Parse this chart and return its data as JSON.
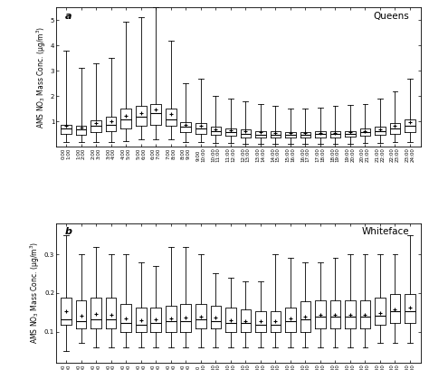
{
  "time_labels": [
    "0:00\n1:00",
    "1:00\n2:00",
    "2:00\n3:00",
    "3:00\n4:00",
    "4:00\n5:00",
    "5:00\n6:00",
    "6:00\n7:00",
    "7:00\n8:00",
    "8:00\n9:00",
    "9:00\n10:00",
    "10:00\n11:00",
    "11:00\n12:00",
    "12:00\n13:00",
    "13:00\n14:00",
    "14:00\n15:00",
    "15:00\n16:00",
    "16:00\n17:00",
    "17:00\n18:00",
    "18:00\n19:00",
    "19:00\n20:00",
    "20:00\n21:00",
    "21:00\n22:00",
    "22:00\n23:00",
    "23:00\n24:00"
  ],
  "queens": {
    "title": "Queens",
    "panel_label": "a",
    "ylabel": "AMS NO$_3$ Mass Conc. (μg/m$^3$)",
    "ylim": [
      0,
      5.5
    ],
    "yticks": [
      1,
      2,
      3,
      4,
      5
    ],
    "boxes": [
      {
        "whislo": 0.18,
        "q1": 0.52,
        "med": 0.72,
        "q3": 0.88,
        "whishi": 3.8,
        "mean": 0.82
      },
      {
        "whislo": 0.18,
        "q1": 0.48,
        "med": 0.68,
        "q3": 0.82,
        "whishi": 3.1,
        "mean": 0.75
      },
      {
        "whislo": 0.18,
        "q1": 0.58,
        "med": 0.82,
        "q3": 1.05,
        "whishi": 3.3,
        "mean": 0.92
      },
      {
        "whislo": 0.18,
        "q1": 0.62,
        "med": 0.88,
        "q3": 1.18,
        "whishi": 3.5,
        "mean": 1.02
      },
      {
        "whislo": 0.22,
        "q1": 0.72,
        "med": 1.08,
        "q3": 1.52,
        "whishi": 4.95,
        "mean": 1.22
      },
      {
        "whislo": 0.28,
        "q1": 0.82,
        "med": 1.18,
        "q3": 1.62,
        "whishi": 5.1,
        "mean": 1.32
      },
      {
        "whislo": 0.28,
        "q1": 0.88,
        "med": 1.32,
        "q3": 1.68,
        "whishi": 5.5,
        "mean": 1.48
      },
      {
        "whislo": 0.28,
        "q1": 0.82,
        "med": 1.08,
        "q3": 1.52,
        "whishi": 4.2,
        "mean": 1.28
      },
      {
        "whislo": 0.18,
        "q1": 0.58,
        "med": 0.78,
        "q3": 0.98,
        "whishi": 2.5,
        "mean": 0.88
      },
      {
        "whislo": 0.18,
        "q1": 0.52,
        "med": 0.72,
        "q3": 0.92,
        "whishi": 2.7,
        "mean": 0.82
      },
      {
        "whislo": 0.14,
        "q1": 0.48,
        "med": 0.62,
        "q3": 0.78,
        "whishi": 2.0,
        "mean": 0.7
      },
      {
        "whislo": 0.14,
        "q1": 0.42,
        "med": 0.58,
        "q3": 0.72,
        "whishi": 1.9,
        "mean": 0.66
      },
      {
        "whislo": 0.1,
        "q1": 0.38,
        "med": 0.52,
        "q3": 0.68,
        "whishi": 1.8,
        "mean": 0.6
      },
      {
        "whislo": 0.1,
        "q1": 0.36,
        "med": 0.48,
        "q3": 0.62,
        "whishi": 1.7,
        "mean": 0.56
      },
      {
        "whislo": 0.1,
        "q1": 0.36,
        "med": 0.48,
        "q3": 0.6,
        "whishi": 1.6,
        "mean": 0.54
      },
      {
        "whislo": 0.1,
        "q1": 0.36,
        "med": 0.48,
        "q3": 0.58,
        "whishi": 1.5,
        "mean": 0.53
      },
      {
        "whislo": 0.1,
        "q1": 0.36,
        "med": 0.48,
        "q3": 0.58,
        "whishi": 1.5,
        "mean": 0.53
      },
      {
        "whislo": 0.1,
        "q1": 0.38,
        "med": 0.5,
        "q3": 0.6,
        "whishi": 1.55,
        "mean": 0.54
      },
      {
        "whislo": 0.1,
        "q1": 0.38,
        "med": 0.5,
        "q3": 0.6,
        "whishi": 1.6,
        "mean": 0.55
      },
      {
        "whislo": 0.1,
        "q1": 0.4,
        "med": 0.52,
        "q3": 0.62,
        "whishi": 1.65,
        "mean": 0.58
      },
      {
        "whislo": 0.14,
        "q1": 0.42,
        "med": 0.58,
        "q3": 0.72,
        "whishi": 1.7,
        "mean": 0.63
      },
      {
        "whislo": 0.14,
        "q1": 0.48,
        "med": 0.62,
        "q3": 0.78,
        "whishi": 1.9,
        "mean": 0.7
      },
      {
        "whislo": 0.18,
        "q1": 0.52,
        "med": 0.72,
        "q3": 0.92,
        "whishi": 2.2,
        "mean": 0.82
      },
      {
        "whislo": 0.18,
        "q1": 0.58,
        "med": 0.82,
        "q3": 1.08,
        "whishi": 2.7,
        "mean": 0.98
      }
    ]
  },
  "whiteface": {
    "title": "Whiteface",
    "panel_label": "b",
    "ylabel": "AMS NO$_3$ Mass Conc. (μg/m$^3$)",
    "ylim": [
      0.02,
      0.38
    ],
    "yticks": [
      0.1,
      0.2,
      0.3
    ],
    "boxes": [
      {
        "whislo": 0.05,
        "q1": 0.118,
        "med": 0.132,
        "q3": 0.188,
        "whishi": 0.35,
        "mean": 0.153
      },
      {
        "whislo": 0.07,
        "q1": 0.108,
        "med": 0.128,
        "q3": 0.182,
        "whishi": 0.3,
        "mean": 0.142
      },
      {
        "whislo": 0.06,
        "q1": 0.108,
        "med": 0.132,
        "q3": 0.188,
        "whishi": 0.32,
        "mean": 0.146
      },
      {
        "whislo": 0.06,
        "q1": 0.108,
        "med": 0.132,
        "q3": 0.188,
        "whishi": 0.3,
        "mean": 0.143
      },
      {
        "whislo": 0.06,
        "q1": 0.098,
        "med": 0.122,
        "q3": 0.172,
        "whishi": 0.3,
        "mean": 0.133
      },
      {
        "whislo": 0.06,
        "q1": 0.098,
        "med": 0.118,
        "q3": 0.162,
        "whishi": 0.28,
        "mean": 0.13
      },
      {
        "whislo": 0.06,
        "q1": 0.098,
        "med": 0.122,
        "q3": 0.162,
        "whishi": 0.27,
        "mean": 0.131
      },
      {
        "whislo": 0.06,
        "q1": 0.098,
        "med": 0.128,
        "q3": 0.168,
        "whishi": 0.32,
        "mean": 0.133
      },
      {
        "whislo": 0.06,
        "q1": 0.098,
        "med": 0.128,
        "q3": 0.172,
        "whishi": 0.32,
        "mean": 0.136
      },
      {
        "whislo": 0.06,
        "q1": 0.108,
        "med": 0.132,
        "q3": 0.172,
        "whishi": 0.3,
        "mean": 0.138
      },
      {
        "whislo": 0.06,
        "q1": 0.108,
        "med": 0.128,
        "q3": 0.168,
        "whishi": 0.25,
        "mean": 0.136
      },
      {
        "whislo": 0.06,
        "q1": 0.098,
        "med": 0.122,
        "q3": 0.162,
        "whishi": 0.24,
        "mean": 0.13
      },
      {
        "whislo": 0.06,
        "q1": 0.098,
        "med": 0.122,
        "q3": 0.158,
        "whishi": 0.23,
        "mean": 0.128
      },
      {
        "whislo": 0.06,
        "q1": 0.098,
        "med": 0.118,
        "q3": 0.152,
        "whishi": 0.23,
        "mean": 0.126
      },
      {
        "whislo": 0.06,
        "q1": 0.098,
        "med": 0.118,
        "q3": 0.152,
        "whishi": 0.3,
        "mean": 0.126
      },
      {
        "whislo": 0.06,
        "q1": 0.098,
        "med": 0.128,
        "q3": 0.162,
        "whishi": 0.29,
        "mean": 0.133
      },
      {
        "whislo": 0.06,
        "q1": 0.098,
        "med": 0.132,
        "q3": 0.178,
        "whishi": 0.28,
        "mean": 0.138
      },
      {
        "whislo": 0.06,
        "q1": 0.108,
        "med": 0.138,
        "q3": 0.182,
        "whishi": 0.28,
        "mean": 0.143
      },
      {
        "whislo": 0.06,
        "q1": 0.108,
        "med": 0.138,
        "q3": 0.182,
        "whishi": 0.29,
        "mean": 0.143
      },
      {
        "whislo": 0.06,
        "q1": 0.108,
        "med": 0.138,
        "q3": 0.182,
        "whishi": 0.3,
        "mean": 0.143
      },
      {
        "whislo": 0.06,
        "q1": 0.108,
        "med": 0.138,
        "q3": 0.182,
        "whishi": 0.3,
        "mean": 0.143
      },
      {
        "whislo": 0.07,
        "q1": 0.118,
        "med": 0.142,
        "q3": 0.188,
        "whishi": 0.3,
        "mean": 0.148
      },
      {
        "whislo": 0.07,
        "q1": 0.122,
        "med": 0.152,
        "q3": 0.198,
        "whishi": 0.3,
        "mean": 0.158
      },
      {
        "whislo": 0.07,
        "q1": 0.122,
        "med": 0.152,
        "q3": 0.198,
        "whishi": 0.35,
        "mean": 0.163
      }
    ]
  }
}
